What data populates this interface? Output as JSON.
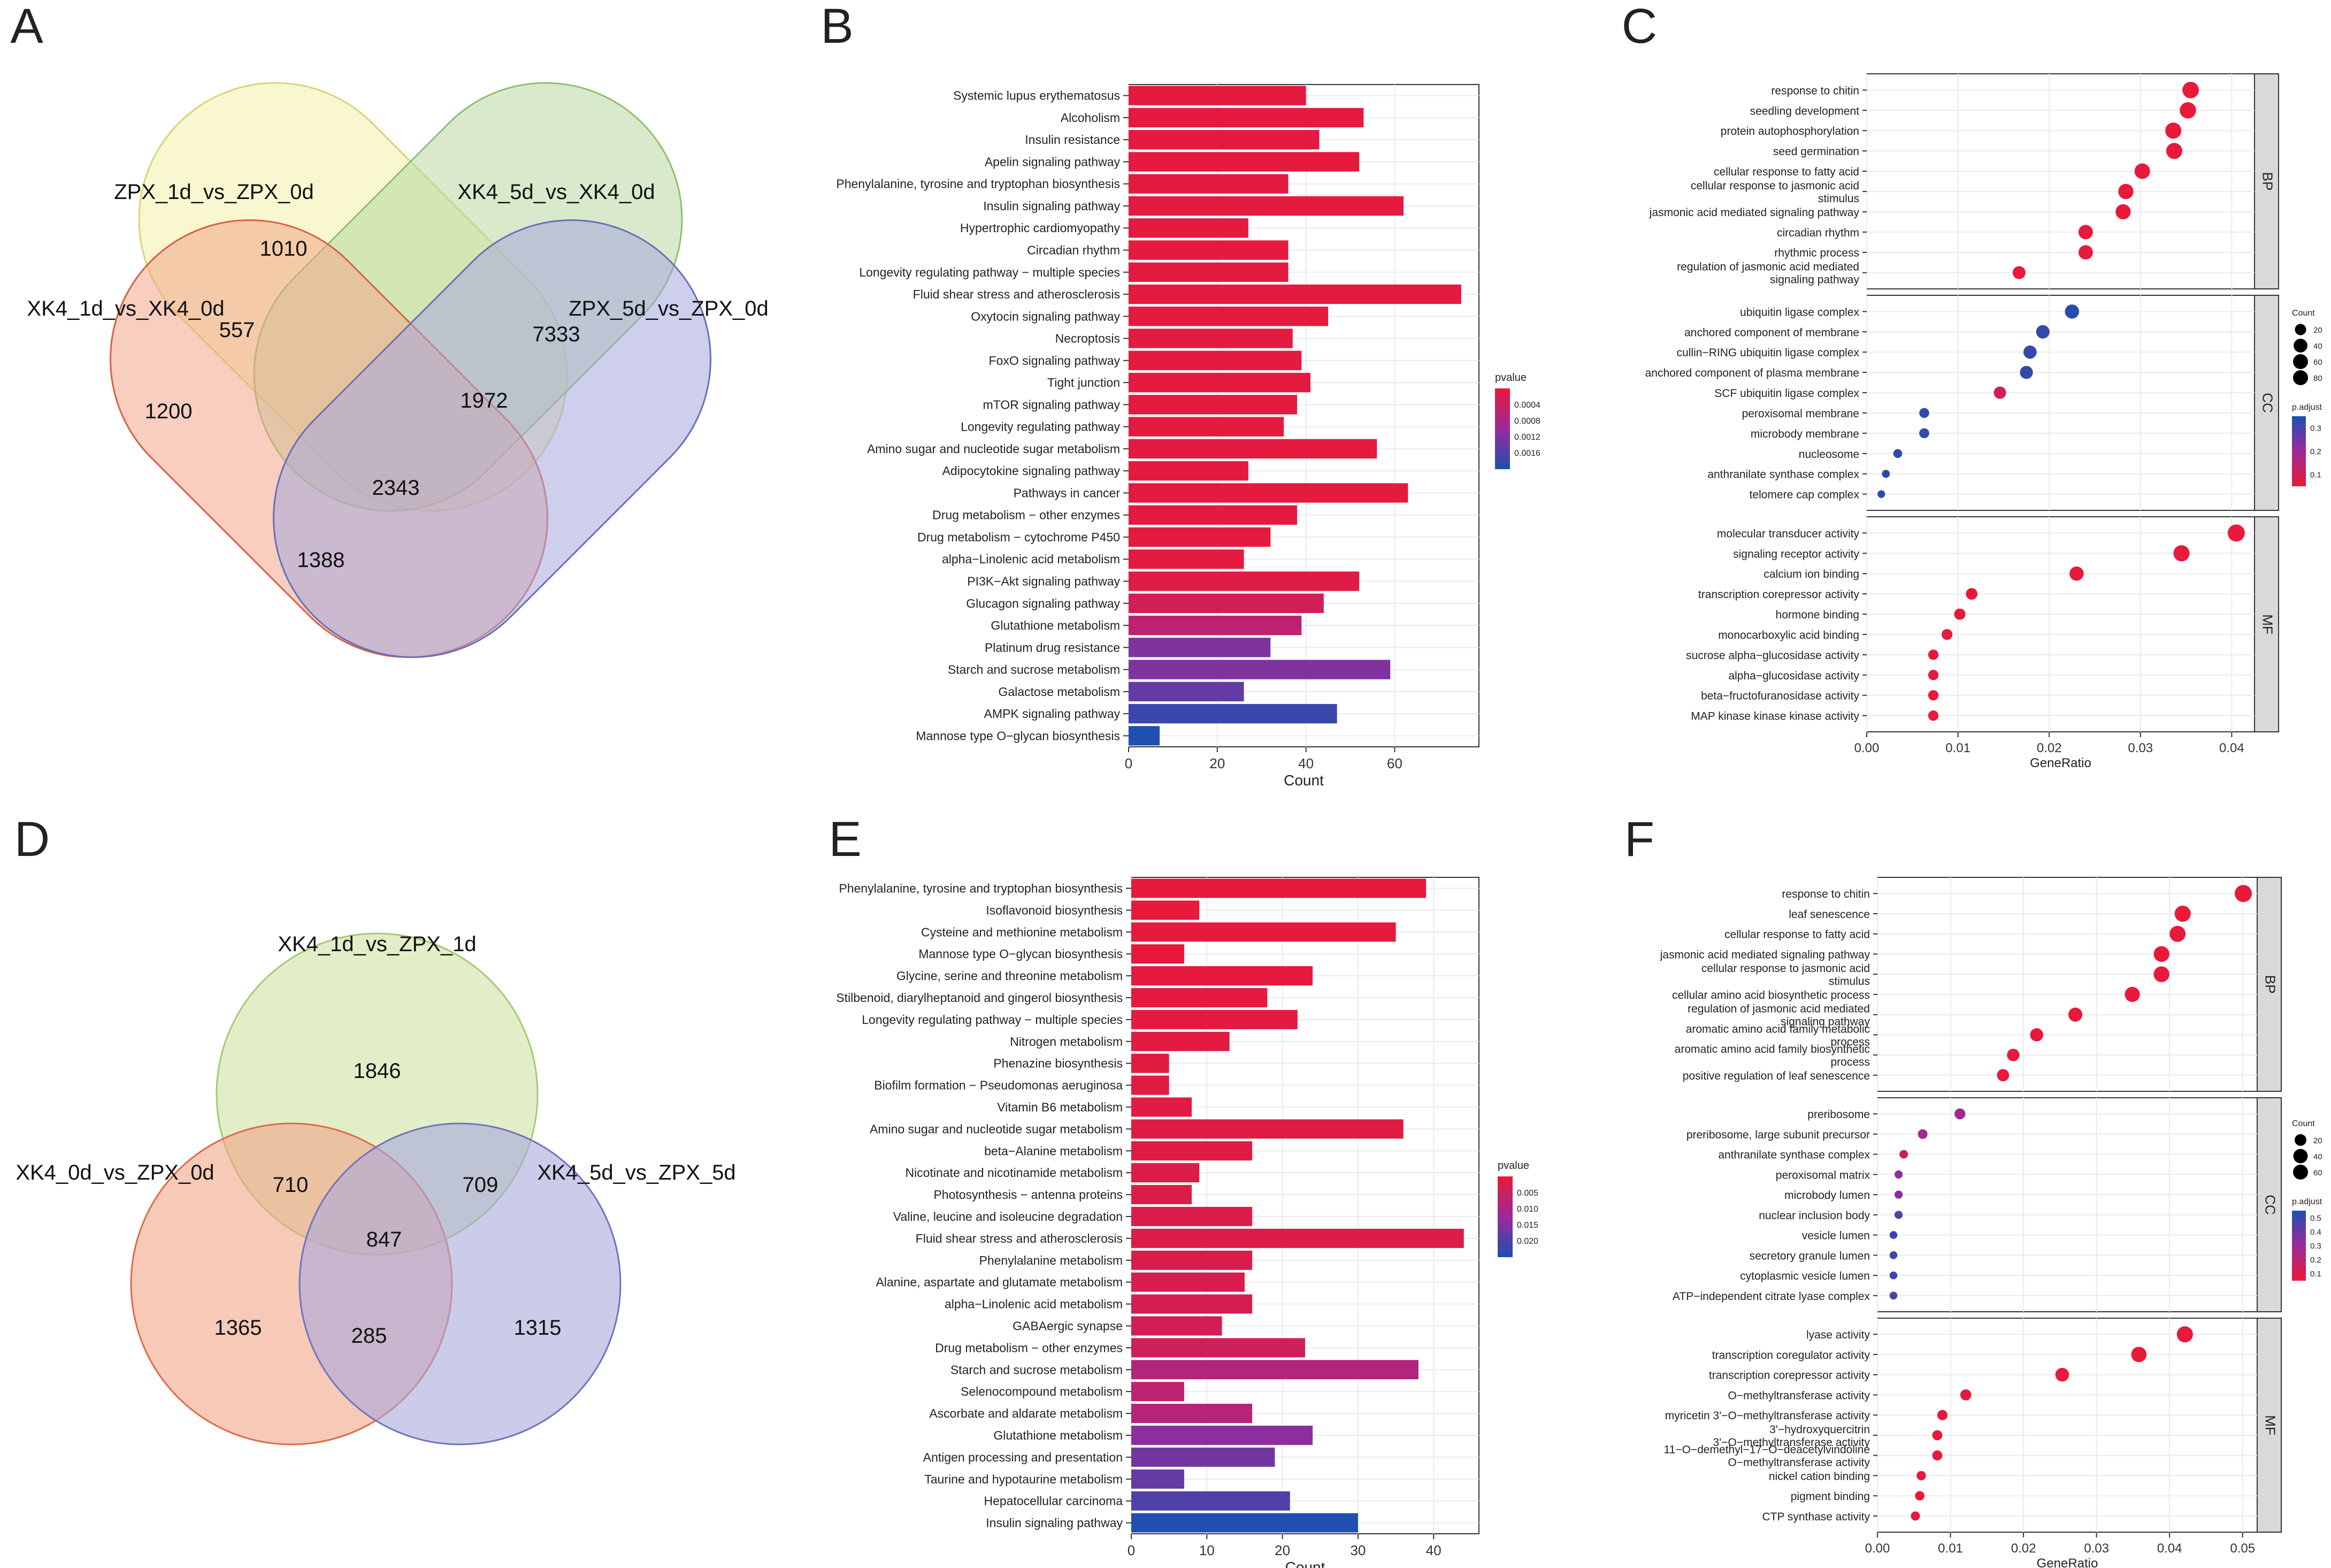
{
  "panels": [
    {
      "id": "A",
      "letter": "A",
      "type": "venn4"
    },
    {
      "id": "B",
      "letter": "B",
      "type": "bar"
    },
    {
      "id": "C",
      "letter": "C",
      "type": "dot"
    },
    {
      "id": "D",
      "letter": "D",
      "type": "venn3"
    },
    {
      "id": "E",
      "letter": "E",
      "type": "bar"
    },
    {
      "id": "F",
      "letter": "F",
      "type": "dot"
    }
  ],
  "chart_data": [
    {
      "panel": "A",
      "type": "venn",
      "sets": [
        "ZPX_1d_vs_ZPX_0d",
        "XK4_5d_vs_XK4_0d",
        "XK4_1d_vs_XK4_0d",
        "ZPX_5d_vs_ZPX_0d"
      ],
      "regions": [
        {
          "sets": [
            "ZPX_1d_vs_ZPX_0d"
          ],
          "value": 1010
        },
        {
          "sets": [
            "ZPX_5d_vs_ZPX_0d"
          ],
          "value": 7333
        },
        {
          "sets": [
            "XK4_1d_vs_XK4_0d"
          ],
          "value": 1200
        },
        {
          "sets": [
            "XK4_1d_vs_XK4_0d",
            "ZPX_1d_vs_ZPX_0d"
          ],
          "value": 557
        },
        {
          "sets": [
            "XK4_5d_vs_XK4_0d",
            "ZPX_5d_vs_ZPX_0d"
          ],
          "value": 1972
        },
        {
          "sets": [
            "all"
          ],
          "value": 2343
        },
        {
          "sets": [
            "XK4_1d_vs_XK4_0d",
            "ZPX_5d_vs_ZPX_0d",
            "XK4_5d_vs_XK4_0d"
          ],
          "value": 1388
        }
      ]
    },
    {
      "panel": "B",
      "type": "bar",
      "orientation": "horizontal",
      "xlabel": "Count",
      "xlim": [
        0,
        79
      ],
      "xticks": [
        0,
        20,
        40,
        60
      ],
      "legend_title": "pvalue",
      "legend_ticks": [
        "0.0004",
        "0.0008",
        "0.0012",
        "0.0016"
      ],
      "categories": [
        "Systemic lupus erythematosus",
        "Alcoholism",
        "Insulin resistance",
        "Apelin signaling pathway",
        "Phenylalanine, tyrosine and tryptophan biosynthesis",
        "Insulin signaling pathway",
        "Hypertrophic cardiomyopathy",
        "Circadian rhythm",
        "Longevity regulating pathway − multiple species",
        "Fluid shear stress and atherosclerosis",
        "Oxytocin signaling pathway",
        "Necroptosis",
        "FoxO signaling pathway",
        "Tight junction",
        "mTOR signaling pathway",
        "Longevity regulating pathway",
        "Amino sugar and nucleotide sugar metabolism",
        "Adipocytokine signaling pathway",
        "Pathways in cancer",
        "Drug metabolism − other enzymes",
        "Drug metabolism − cytochrome P450",
        "alpha−Linolenic acid metabolism",
        "PI3K−Akt signaling pathway",
        "Glucagon signaling pathway",
        "Glutathione metabolism",
        "Platinum drug resistance",
        "Starch and sucrose metabolism",
        "Galactose metabolism",
        "AMPK signaling pathway",
        "Mannose type O−glycan biosynthesis"
      ],
      "values": [
        40,
        53,
        43,
        52,
        36,
        62,
        27,
        36,
        36,
        75,
        45,
        37,
        39,
        41,
        38,
        35,
        56,
        27,
        63,
        38,
        32,
        26,
        52,
        44,
        39,
        32,
        59,
        26,
        47,
        7
      ],
      "pvalue": [
        5e-05,
        5e-05,
        5e-05,
        5e-05,
        5e-05,
        5e-05,
        5e-05,
        5e-05,
        5e-05,
        5e-05,
        5e-05,
        5e-05,
        5e-05,
        5e-05,
        5e-05,
        5e-05,
        5e-05,
        5e-05,
        5e-05,
        5e-05,
        5e-05,
        5e-05,
        0.0001,
        0.00025,
        0.0005,
        0.0011,
        0.0011,
        0.0013,
        0.0016,
        0.0018
      ]
    },
    {
      "panel": "C",
      "type": "scatter",
      "xlabel": "GeneRatio",
      "xlim": [
        0,
        0.0425
      ],
      "xticks": [
        "0.00",
        "0.01",
        "0.02",
        "0.03",
        "0.04"
      ],
      "size_legend": {
        "title": "Count",
        "values": [
          "20",
          "40",
          "60",
          "80"
        ]
      },
      "color_legend": {
        "title": "p.adjust",
        "values": [
          "0.3",
          "0.2",
          "0.1"
        ]
      },
      "groups": [
        {
          "name": "BP",
          "terms": [
            {
              "term": "response to chitin",
              "ratio": 0.0355,
              "count": 70,
              "padj": 0.0
            },
            {
              "term": "seedling development",
              "ratio": 0.0352,
              "count": 68,
              "padj": 0.0
            },
            {
              "term": "protein autophosphorylation",
              "ratio": 0.0336,
              "count": 65,
              "padj": 0.0
            },
            {
              "term": "seed germination",
              "ratio": 0.0337,
              "count": 65,
              "padj": 0.0
            },
            {
              "term": "cellular response to fatty acid",
              "ratio": 0.0302,
              "count": 58,
              "padj": 0.0
            },
            {
              "term": "cellular response to jasmonic acid stimulus",
              "ratio": 0.0284,
              "count": 55,
              "padj": 0.0
            },
            {
              "term": "jasmonic acid mediated signaling pathway",
              "ratio": 0.0281,
              "count": 54,
              "padj": 0.0
            },
            {
              "term": "circadian rhythm",
              "ratio": 0.024,
              "count": 46,
              "padj": 0.0
            },
            {
              "term": "rhythmic process",
              "ratio": 0.024,
              "count": 46,
              "padj": 0.0
            },
            {
              "term": "regulation of jasmonic acid mediated signaling pathway",
              "ratio": 0.0167,
              "count": 32,
              "padj": 0.0
            }
          ]
        },
        {
          "name": "CC",
          "terms": [
            {
              "term": "ubiquitin ligase complex",
              "ratio": 0.0225,
              "count": 44,
              "padj": 0.33
            },
            {
              "term": "anchored component of membrane",
              "ratio": 0.0193,
              "count": 37,
              "padj": 0.32
            },
            {
              "term": "cullin−RING ubiquitin ligase complex",
              "ratio": 0.0179,
              "count": 35,
              "padj": 0.32
            },
            {
              "term": "anchored component of plasma membrane",
              "ratio": 0.0175,
              "count": 33,
              "padj": 0.32
            },
            {
              "term": "SCF ubiquitin ligase complex",
              "ratio": 0.0146,
              "count": 28,
              "padj": 0.05
            },
            {
              "term": "peroxisomal membrane",
              "ratio": 0.0063,
              "count": 12,
              "padj": 0.32
            },
            {
              "term": "microbody membrane",
              "ratio": 0.0063,
              "count": 12,
              "padj": 0.32
            },
            {
              "term": "nucleosome",
              "ratio": 0.0034,
              "count": 7,
              "padj": 0.33
            },
            {
              "term": "anthranilate synthase complex",
              "ratio": 0.0021,
              "count": 4,
              "padj": 0.33
            },
            {
              "term": "telomere cap complex",
              "ratio": 0.0016,
              "count": 3,
              "padj": 0.33
            }
          ]
        },
        {
          "name": "MF",
          "terms": [
            {
              "term": "molecular transducer activity",
              "ratio": 0.0405,
              "count": 78,
              "padj": 0.0
            },
            {
              "term": "signaling receptor activity",
              "ratio": 0.0345,
              "count": 66,
              "padj": 0.0
            },
            {
              "term": "calcium ion binding",
              "ratio": 0.023,
              "count": 44,
              "padj": 0.0
            },
            {
              "term": "transcription corepressor activity",
              "ratio": 0.0115,
              "count": 22,
              "padj": 0.0
            },
            {
              "term": "hormone binding",
              "ratio": 0.0102,
              "count": 20,
              "padj": 0.0
            },
            {
              "term": "monocarboxylic acid binding",
              "ratio": 0.0088,
              "count": 17,
              "padj": 0.0
            },
            {
              "term": "sucrose alpha−glucosidase activity",
              "ratio": 0.0073,
              "count": 14,
              "padj": 0.0
            },
            {
              "term": "alpha−glucosidase activity",
              "ratio": 0.0073,
              "count": 14,
              "padj": 0.0
            },
            {
              "term": "beta−fructofuranosidase activity",
              "ratio": 0.0073,
              "count": 14,
              "padj": 0.0
            },
            {
              "term": "MAP kinase kinase kinase activity",
              "ratio": 0.0073,
              "count": 14,
              "padj": 0.0
            }
          ]
        }
      ]
    },
    {
      "panel": "D",
      "type": "venn",
      "sets": [
        "XK4_1d_vs_ZPX_1d",
        "XK4_0d_vs_ZPX_0d",
        "XK4_5d_vs_ZPX_5d"
      ],
      "regions": [
        {
          "sets": [
            "XK4_1d_vs_ZPX_1d"
          ],
          "value": 1846
        },
        {
          "sets": [
            "XK4_0d_vs_ZPX_0d"
          ],
          "value": 1365
        },
        {
          "sets": [
            "XK4_5d_vs_ZPX_5d"
          ],
          "value": 1315
        },
        {
          "sets": [
            "XK4_1d_vs_ZPX_1d",
            "XK4_0d_vs_ZPX_0d"
          ],
          "value": 710
        },
        {
          "sets": [
            "XK4_1d_vs_ZPX_1d",
            "XK4_5d_vs_ZPX_5d"
          ],
          "value": 709
        },
        {
          "sets": [
            "XK4_0d_vs_ZPX_0d",
            "XK4_5d_vs_ZPX_5d"
          ],
          "value": 285
        },
        {
          "sets": [
            "XK4_1d_vs_ZPX_1d",
            "XK4_0d_vs_ZPX_0d",
            "XK4_5d_vs_ZPX_5d"
          ],
          "value": 847
        }
      ]
    },
    {
      "panel": "E",
      "type": "bar",
      "orientation": "horizontal",
      "xlabel": "Count",
      "xlim": [
        0,
        46
      ],
      "xticks": [
        0,
        10,
        20,
        30,
        40
      ],
      "legend_title": "pvalue",
      "legend_ticks": [
        "0.005",
        "0.010",
        "0.015",
        "0.020"
      ],
      "categories": [
        "Phenylalanine, tyrosine and tryptophan biosynthesis",
        "Isoflavonoid biosynthesis",
        "Cysteine and methionine metabolism",
        "Mannose type O−glycan biosynthesis",
        "Glycine, serine and threonine metabolism",
        "Stilbenoid, diarylheptanoid and gingerol biosynthesis",
        "Longevity regulating pathway − multiple species",
        "Nitrogen metabolism",
        "Phenazine biosynthesis",
        "Biofilm formation − Pseudomonas aeruginosa",
        "Vitamin B6 metabolism",
        "Amino sugar and nucleotide sugar metabolism",
        "beta−Alanine metabolism",
        "Nicotinate and nicotinamide metabolism",
        "Photosynthesis − antenna proteins",
        "Valine, leucine and isoleucine degradation",
        "Fluid shear stress and atherosclerosis",
        "Phenylalanine metabolism",
        "Alanine, aspartate and glutamate metabolism",
        "alpha−Linolenic acid metabolism",
        "GABAergic synapse",
        "Drug metabolism − other enzymes",
        "Starch and sucrose metabolism",
        "Selenocompound metabolism",
        "Ascorbate and aldarate metabolism",
        "Glutathione metabolism",
        "Antigen processing and presentation",
        "Taurine and hypotaurine metabolism",
        "Hepatocellular carcinoma",
        "Insulin signaling pathway"
      ],
      "values": [
        39,
        9,
        35,
        7,
        24,
        18,
        22,
        13,
        5,
        5,
        8,
        36,
        16,
        9,
        8,
        16,
        44,
        16,
        15,
        16,
        12,
        23,
        38,
        7,
        16,
        24,
        19,
        7,
        21,
        30
      ],
      "pvalue": [
        0.0001,
        0.0002,
        0.0002,
        0.0003,
        0.0004,
        0.0005,
        0.0006,
        0.0008,
        0.0009,
        0.0009,
        0.001,
        0.001,
        0.0012,
        0.0015,
        0.0016,
        0.0017,
        0.0018,
        0.002,
        0.0022,
        0.0025,
        0.003,
        0.0035,
        0.0075,
        0.006,
        0.007,
        0.012,
        0.014,
        0.015,
        0.017,
        0.021
      ]
    },
    {
      "panel": "F",
      "type": "scatter",
      "xlabel": "GeneRatio",
      "xlim": [
        0,
        0.052
      ],
      "xticks": [
        "0.00",
        "0.01",
        "0.02",
        "0.03",
        "0.04",
        "0.05"
      ],
      "size_legend": {
        "title": "Count",
        "values": [
          "20",
          "40",
          "60"
        ]
      },
      "color_legend": {
        "title": "p.adjust",
        "values": [
          "0.5",
          "0.4",
          "0.3",
          "0.2",
          "0.1"
        ]
      },
      "groups": [
        {
          "name": "BP",
          "terms": [
            {
              "term": "response to chitin",
              "ratio": 0.0501,
              "count": 68,
              "padj": 0.0
            },
            {
              "term": "leaf senescence",
              "ratio": 0.0418,
              "count": 57,
              "padj": 0.0
            },
            {
              "term": "cellular response to fatty acid",
              "ratio": 0.0411,
              "count": 56,
              "padj": 0.0
            },
            {
              "term": "jasmonic acid mediated signaling pathway",
              "ratio": 0.0389,
              "count": 53,
              "padj": 0.0
            },
            {
              "term": "cellular response to jasmonic acid stimulus",
              "ratio": 0.0389,
              "count": 53,
              "padj": 0.0
            },
            {
              "term": "cellular amino acid biosynthetic process",
              "ratio": 0.0349,
              "count": 47,
              "padj": 0.0
            },
            {
              "term": "regulation of jasmonic acid mediated signaling pathway",
              "ratio": 0.0271,
              "count": 37,
              "padj": 0.0
            },
            {
              "term": "aromatic amino acid family metabolic process",
              "ratio": 0.0218,
              "count": 30,
              "padj": 0.0
            },
            {
              "term": "aromatic amino acid family biosynthetic process",
              "ratio": 0.0186,
              "count": 25,
              "padj": 0.0
            },
            {
              "term": "positive regulation of leaf senescence",
              "ratio": 0.0172,
              "count": 23,
              "padj": 0.0
            }
          ]
        },
        {
          "name": "CC",
          "terms": [
            {
              "term": "preribosome",
              "ratio": 0.0113,
              "count": 15,
              "padj": 0.25
            },
            {
              "term": "preribosome, large subunit precursor",
              "ratio": 0.0062,
              "count": 9,
              "padj": 0.25
            },
            {
              "term": "anthranilate synthase complex",
              "ratio": 0.0036,
              "count": 5,
              "padj": 0.1
            },
            {
              "term": "peroxisomal matrix",
              "ratio": 0.0029,
              "count": 4,
              "padj": 0.32
            },
            {
              "term": "microbody lumen",
              "ratio": 0.0029,
              "count": 4,
              "padj": 0.32
            },
            {
              "term": "nuclear inclusion body",
              "ratio": 0.0029,
              "count": 4,
              "padj": 0.42
            },
            {
              "term": "vesicle lumen",
              "ratio": 0.0022,
              "count": 3,
              "padj": 0.48
            },
            {
              "term": "secretory granule lumen",
              "ratio": 0.0022,
              "count": 3,
              "padj": 0.48
            },
            {
              "term": "cytoplasmic vesicle lumen",
              "ratio": 0.0022,
              "count": 3,
              "padj": 0.48
            },
            {
              "term": "ATP−independent citrate lyase complex",
              "ratio": 0.0022,
              "count": 3,
              "padj": 0.48
            }
          ]
        },
        {
          "name": "MF",
          "terms": [
            {
              "term": "lyase activity",
              "ratio": 0.0421,
              "count": 57,
              "padj": 0.0
            },
            {
              "term": "transcription coregulator activity",
              "ratio": 0.0358,
              "count": 49,
              "padj": 0.0
            },
            {
              "term": "transcription corepressor activity",
              "ratio": 0.0253,
              "count": 34,
              "padj": 0.0
            },
            {
              "term": "O−methyltransferase activity",
              "ratio": 0.0121,
              "count": 16,
              "padj": 0.0
            },
            {
              "term": "myricetin 3'−O−methyltransferase activity",
              "ratio": 0.0089,
              "count": 12,
              "padj": 0.0
            },
            {
              "term": "3'−hydroxyquercitrin 3'−O−methyltransferase activity",
              "ratio": 0.0082,
              "count": 11,
              "padj": 0.0
            },
            {
              "term": "11−O−demethyl−17−O−deacetylvindoline O−methyltransferase activity",
              "ratio": 0.0082,
              "count": 11,
              "padj": 0.0
            },
            {
              "term": "nickel cation binding",
              "ratio": 0.006,
              "count": 8,
              "padj": 0.0
            },
            {
              "term": "pigment binding",
              "ratio": 0.0058,
              "count": 8,
              "padj": 0.0
            },
            {
              "term": "CTP synthase activity",
              "ratio": 0.0052,
              "count": 7,
              "padj": 0.0
            }
          ]
        }
      ]
    }
  ]
}
